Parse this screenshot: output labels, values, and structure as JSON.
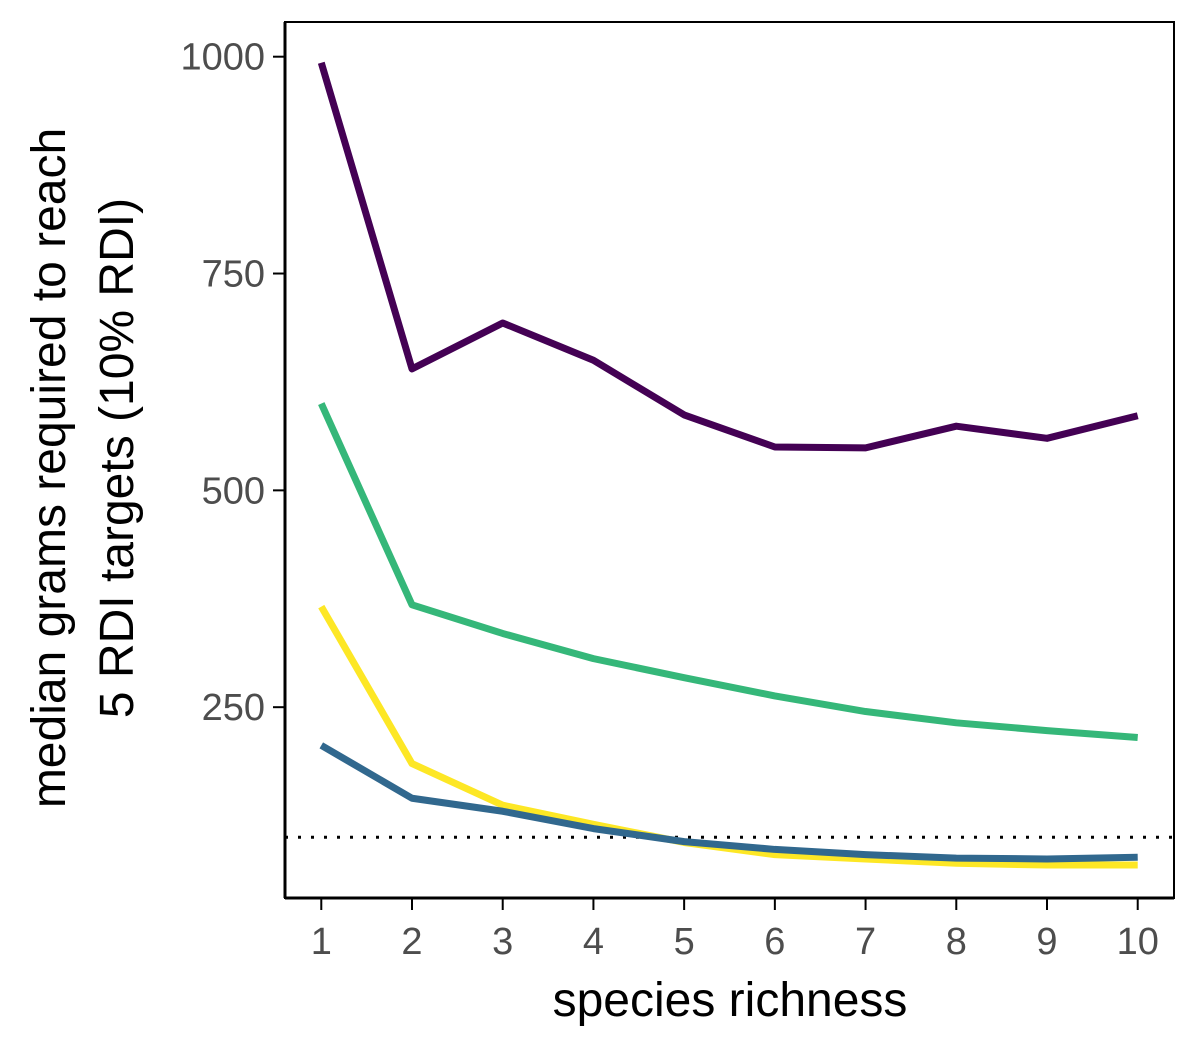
{
  "chart_data": {
    "type": "line",
    "title": "",
    "xlabel": "species richness",
    "ylabel_line1": "median grams required to reach",
    "ylabel_line2": "5 RDI targets (10% RDI)",
    "x": [
      1,
      2,
      3,
      4,
      5,
      6,
      7,
      8,
      9,
      10
    ],
    "xlim": [
      0.6,
      10.4
    ],
    "ylim": [
      30,
      1040
    ],
    "x_ticks": [
      "1",
      "2",
      "3",
      "4",
      "5",
      "6",
      "7",
      "8",
      "9",
      "10"
    ],
    "y_ticks": [
      {
        "value": 250,
        "label": "250"
      },
      {
        "value": 500,
        "label": "500"
      },
      {
        "value": 750,
        "label": "750"
      },
      {
        "value": 1000,
        "label": "1000"
      }
    ],
    "reference_line": {
      "y": 100,
      "style": "dotted",
      "color": "#000000"
    },
    "series": [
      {
        "name": "series-purple",
        "color": "#440154",
        "values": [
          993,
          640,
          693,
          650,
          587,
          550,
          549,
          574,
          560,
          586
        ]
      },
      {
        "name": "series-green",
        "color": "#35B779",
        "values": [
          600,
          368,
          335,
          306,
          284,
          263,
          245,
          232,
          223,
          215
        ]
      },
      {
        "name": "series-yellow",
        "color": "#FDE725",
        "values": [
          366,
          185,
          137,
          115,
          94,
          80,
          75,
          70,
          68,
          68
        ]
      },
      {
        "name": "series-navy",
        "color": "#31688E",
        "values": [
          206,
          145,
          130,
          110,
          95,
          86,
          80,
          76,
          75,
          77
        ]
      }
    ],
    "grid": false,
    "legend": "none"
  }
}
